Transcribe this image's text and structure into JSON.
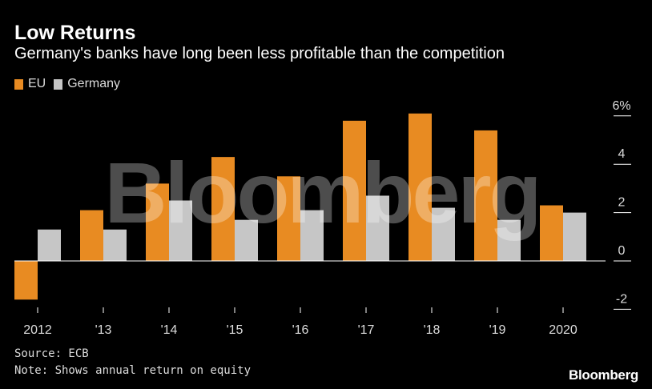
{
  "header": {
    "title": "Low Returns",
    "subtitle": "Germany's banks have long been less profitable than the competition"
  },
  "legend": {
    "eu_label": "EU",
    "germany_label": "Germany"
  },
  "footer": {
    "source": "Source: ECB",
    "note": "Note: Shows annual return on equity",
    "brand": "Bloomberg"
  },
  "watermark": "Bloomberg",
  "colors": {
    "eu": "#e88b22",
    "germany": "#c6c6c6",
    "background": "#000000",
    "axis": "#ffffff"
  },
  "chart_data": {
    "type": "bar",
    "categories": [
      "2012",
      "'13",
      "'14",
      "'15",
      "'16",
      "'17",
      "'18",
      "'19",
      "2020"
    ],
    "series": [
      {
        "name": "EU",
        "values": [
          -1.6,
          2.1,
          3.2,
          4.3,
          3.5,
          5.8,
          6.1,
          5.4,
          2.3
        ]
      },
      {
        "name": "Germany",
        "values": [
          1.3,
          1.3,
          2.5,
          1.7,
          2.1,
          2.7,
          2.2,
          1.7,
          2.0
        ]
      }
    ],
    "ylim": [
      -2.5,
      6.5
    ],
    "yticks": [
      6,
      4,
      2,
      0,
      -2
    ],
    "ytick_labels": [
      "6%",
      "4",
      "2",
      "0",
      "-2"
    ],
    "grid": false,
    "legend_position": "top-left"
  }
}
